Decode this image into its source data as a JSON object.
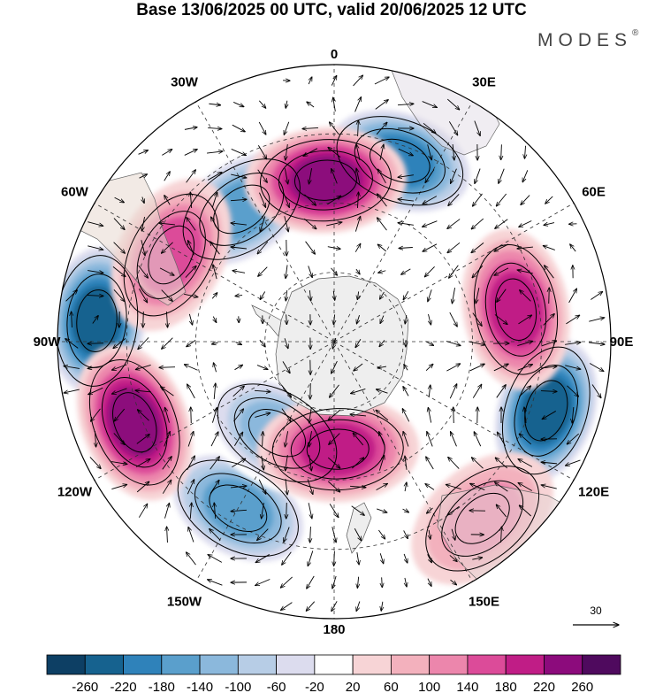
{
  "title": "Base 13/06/2025 00 UTC, valid 20/06/2025 12 UTC",
  "brand": "MODES",
  "brand_mark": "®",
  "meridian_labels": [
    "0",
    "30E",
    "60E",
    "90E",
    "120E",
    "150E",
    "180",
    "150W",
    "120W",
    "90W",
    "60W",
    "30W"
  ],
  "reference_vector": {
    "label": "30",
    "value": 30
  },
  "colorbar": {
    "ticks": [
      "-260",
      "-220",
      "-180",
      "-140",
      "-100",
      "-60",
      "-20",
      "20",
      "60",
      "100",
      "140",
      "180",
      "220",
      "260"
    ],
    "colors": [
      "#0d3f64",
      "#16628f",
      "#2f82ba",
      "#5a9fcc",
      "#8bb8dc",
      "#b7cde6",
      "#dcdcee",
      "#ffffff",
      "#f7d4d6",
      "#f3b1bd",
      "#ec86ac",
      "#dc4b99",
      "#c01d86",
      "#8c0b7c",
      "#4f0a5e"
    ]
  },
  "anomalies": [
    {
      "name": "low-90w",
      "type": "low",
      "lon": -85,
      "colat": 62,
      "value": -220
    },
    {
      "name": "low-105e",
      "type": "low",
      "lon": 108,
      "colat": 58,
      "value": -220
    },
    {
      "name": "low-30e",
      "type": "low",
      "lon": 20,
      "colat": 50,
      "value": -180
    },
    {
      "name": "low-30w",
      "type": "low",
      "lon": -35,
      "colat": 42,
      "value": -140
    },
    {
      "name": "low-145w",
      "type": "low",
      "lon": -150,
      "colat": 50,
      "value": -140
    },
    {
      "name": "low-155w",
      "type": "low",
      "lon": -148,
      "colat": 28,
      "value": -100
    },
    {
      "name": "high-5w",
      "type": "high",
      "lon": -3,
      "colat": 42,
      "value": 180
    },
    {
      "name": "high-110w",
      "type": "high",
      "lon": -112,
      "colat": 56,
      "value": 180
    },
    {
      "name": "high-80e",
      "type": "high",
      "lon": 80,
      "colat": 48,
      "value": 140
    },
    {
      "name": "high-60w",
      "type": "high",
      "lon": -62,
      "colat": 48,
      "value": 100
    },
    {
      "name": "high-175e",
      "type": "high",
      "lon": 178,
      "colat": 28,
      "value": 140
    },
    {
      "name": "high-140e",
      "type": "high",
      "lon": 140,
      "colat": 60,
      "value": 60
    }
  ]
}
